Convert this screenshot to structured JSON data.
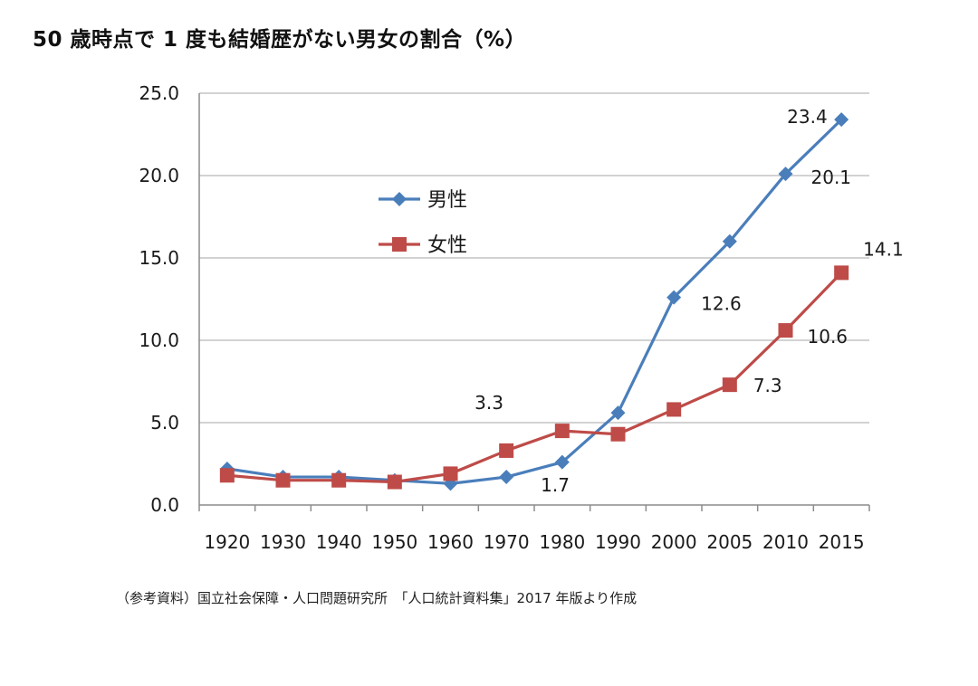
{
  "colors": {
    "male": "#4a7ebb",
    "female": "#be4b48",
    "grid": "#b7b7b7"
  },
  "chart_data": {
    "type": "line",
    "title": "50 歳時点で 1 度も結婚歴がない男女の割合（%）",
    "xlabel": "",
    "ylabel": "",
    "categories": [
      "1920",
      "1930",
      "1940",
      "1950",
      "1960",
      "1970",
      "1980",
      "1990",
      "2000",
      "2005",
      "2010",
      "2015"
    ],
    "ylim": [
      0,
      25
    ],
    "yticks": [
      "0.0",
      "5.0",
      "10.0",
      "15.0",
      "20.0",
      "25.0"
    ],
    "grid": true,
    "legend_position": "upper-left inside plot",
    "series": [
      {
        "name": "男性",
        "marker": "diamond",
        "values": [
          2.2,
          1.7,
          1.7,
          1.5,
          1.3,
          1.7,
          2.6,
          5.6,
          12.6,
          16.0,
          20.1,
          23.4
        ]
      },
      {
        "name": "女性",
        "marker": "square",
        "values": [
          1.8,
          1.5,
          1.5,
          1.4,
          1.9,
          3.3,
          4.5,
          4.3,
          5.8,
          7.3,
          10.6,
          14.1
        ]
      }
    ],
    "data_labels": [
      {
        "series": 0,
        "index": 5,
        "text": "1.7"
      },
      {
        "series": 0,
        "index": 8,
        "text": "12.6"
      },
      {
        "series": 0,
        "index": 10,
        "text": "20.1"
      },
      {
        "series": 0,
        "index": 11,
        "text": "23.4"
      },
      {
        "series": 1,
        "index": 5,
        "text": "3.3"
      },
      {
        "series": 1,
        "index": 9,
        "text": "7.3"
      },
      {
        "series": 1,
        "index": 10,
        "text": "10.6"
      },
      {
        "series": 1,
        "index": 11,
        "text": "14.1"
      }
    ]
  },
  "source_note": "（参考資料）国立社会保障・人口問題研究所　「人口統計資料集」2017 年版より作成"
}
